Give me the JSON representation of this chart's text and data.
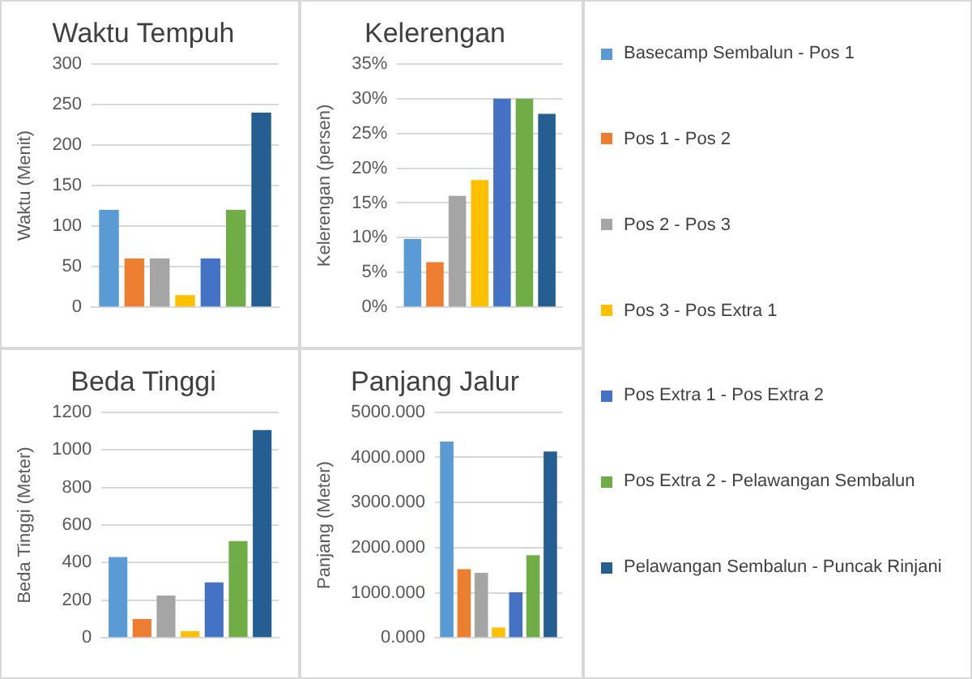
{
  "chart_data": [
    {
      "type": "bar",
      "title": "Waktu Tempuh",
      "ylabel": "Waktu (Menit)",
      "categories": [
        null
      ],
      "ylim": [
        0,
        300
      ],
      "yticks": [
        0,
        50,
        100,
        150,
        200,
        250,
        300
      ],
      "grid": "y",
      "legend": "right",
      "series": [
        {
          "name": "Basecamp Sembalun - Pos 1",
          "color": "#5b9bd5",
          "values": [
            120
          ]
        },
        {
          "name": "Pos 1 - Pos 2",
          "color": "#ed7d31",
          "values": [
            60
          ]
        },
        {
          "name": "Pos 2 - Pos 3",
          "color": "#a5a5a5",
          "values": [
            60
          ]
        },
        {
          "name": "Pos 3 - Pos Extra 1",
          "color": "#ffc000",
          "values": [
            15
          ]
        },
        {
          "name": "Pos Extra 1 - Pos Extra 2",
          "color": "#4472c4",
          "values": [
            60
          ]
        },
        {
          "name": "Pos Extra 2 - Pelawangan Sembalun",
          "color": "#70ad47",
          "values": [
            120
          ]
        },
        {
          "name": "Pelawangan Sembalun - Puncak Rinjani",
          "color": "#255e91",
          "values": [
            240
          ]
        }
      ]
    },
    {
      "type": "bar",
      "title": "Kelerengan",
      "ylabel": "Kelerengan (persen)",
      "categories": [
        null
      ],
      "ylim": [
        0,
        35
      ],
      "yticks": [
        {
          "value": 0,
          "label": "0%"
        },
        {
          "value": 5,
          "label": "5%"
        },
        {
          "value": 10,
          "label": "10%"
        },
        {
          "value": 15,
          "label": "15%"
        },
        {
          "value": 20,
          "label": "20%"
        },
        {
          "value": 25,
          "label": "25%"
        },
        {
          "value": 30,
          "label": "30%"
        },
        {
          "value": 35,
          "label": "35%"
        }
      ],
      "grid": "y",
      "series": [
        {
          "color": "#5b9bd5",
          "values": [
            9.8
          ]
        },
        {
          "color": "#ed7d31",
          "values": [
            6.5
          ]
        },
        {
          "color": "#a5a5a5",
          "values": [
            16
          ]
        },
        {
          "color": "#ffc000",
          "values": [
            18.3
          ]
        },
        {
          "color": "#4472c4",
          "values": [
            30
          ]
        },
        {
          "color": "#70ad47",
          "values": [
            30
          ]
        },
        {
          "color": "#255e91",
          "values": [
            27.8
          ]
        }
      ]
    },
    {
      "type": "bar",
      "title": "Beda Tinggi",
      "ylabel": "Beda Tinggi (Meter)",
      "categories": [
        null
      ],
      "ylim": [
        0,
        1200
      ],
      "yticks": [
        0,
        200,
        400,
        600,
        800,
        1000,
        1200
      ],
      "grid": "y",
      "series": [
        {
          "color": "#5b9bd5",
          "values": [
            430
          ]
        },
        {
          "color": "#ed7d31",
          "values": [
            100
          ]
        },
        {
          "color": "#a5a5a5",
          "values": [
            225
          ]
        },
        {
          "color": "#ffc000",
          "values": [
            35
          ]
        },
        {
          "color": "#4472c4",
          "values": [
            295
          ]
        },
        {
          "color": "#70ad47",
          "values": [
            515
          ]
        },
        {
          "color": "#255e91",
          "values": [
            1105
          ]
        }
      ]
    },
    {
      "type": "bar",
      "title": "Panjang Jalur",
      "ylabel": "Panjang (Meter)",
      "categories": [
        null
      ],
      "ylim": [
        0,
        5000
      ],
      "yticks": [
        {
          "value": 0,
          "label": "0.000"
        },
        {
          "value": 1000,
          "label": "1000.000"
        },
        {
          "value": 2000,
          "label": "2000.000"
        },
        {
          "value": 3000,
          "label": "3000.000"
        },
        {
          "value": 4000,
          "label": "4000.000"
        },
        {
          "value": 5000,
          "label": "5000.000"
        }
      ],
      "grid": "y",
      "series": [
        {
          "color": "#5b9bd5",
          "values": [
            4350
          ]
        },
        {
          "color": "#ed7d31",
          "values": [
            1520
          ]
        },
        {
          "color": "#a5a5a5",
          "values": [
            1440
          ]
        },
        {
          "color": "#ffc000",
          "values": [
            230
          ]
        },
        {
          "color": "#4472c4",
          "values": [
            1010
          ]
        },
        {
          "color": "#70ad47",
          "values": [
            1830
          ]
        },
        {
          "color": "#255e91",
          "values": [
            4130
          ]
        }
      ]
    }
  ]
}
